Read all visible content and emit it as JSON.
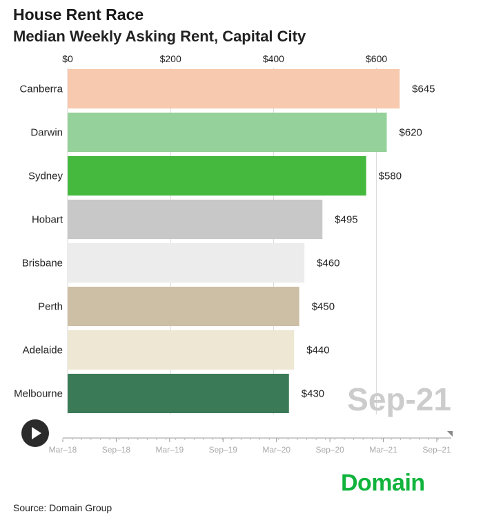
{
  "header": {
    "title": "House Rent Race",
    "subtitle": "Median Weekly Asking Rent, Capital City"
  },
  "chart_data": {
    "type": "bar",
    "orientation": "horizontal",
    "title": "House Rent Race",
    "subtitle": "Median Weekly Asking Rent, Capital City",
    "categories": [
      "Canberra",
      "Darwin",
      "Sydney",
      "Hobart",
      "Brisbane",
      "Perth",
      "Adelaide",
      "Melbourne"
    ],
    "values": [
      645,
      620,
      580,
      495,
      460,
      450,
      440,
      430
    ],
    "value_labels": [
      "$645",
      "$620",
      "$580",
      "$495",
      "$460",
      "$450",
      "$440",
      "$430"
    ],
    "colors": [
      "#f7c9ae",
      "#95d19a",
      "#45b83e",
      "#c8c8c8",
      "#ececec",
      "#cdbfa6",
      "#ede7d4",
      "#3a7a57"
    ],
    "xlim": [
      0,
      650
    ],
    "x_ticks": [
      0,
      200,
      400,
      600
    ],
    "x_tick_labels": [
      "$0",
      "$200",
      "$400",
      "$600"
    ],
    "axis_position": "top",
    "grid": true,
    "current_period": "Sep-21"
  },
  "timeline": {
    "ticks": [
      "Mar–18",
      "Sep–18",
      "Mar–19",
      "Sep–19",
      "Mar–20",
      "Sep–20",
      "Mar–21",
      "Sep–21"
    ],
    "current_index": 7,
    "play_icon": "play-icon"
  },
  "footer": {
    "source": "Source: Domain Group",
    "brand": "Domain"
  }
}
